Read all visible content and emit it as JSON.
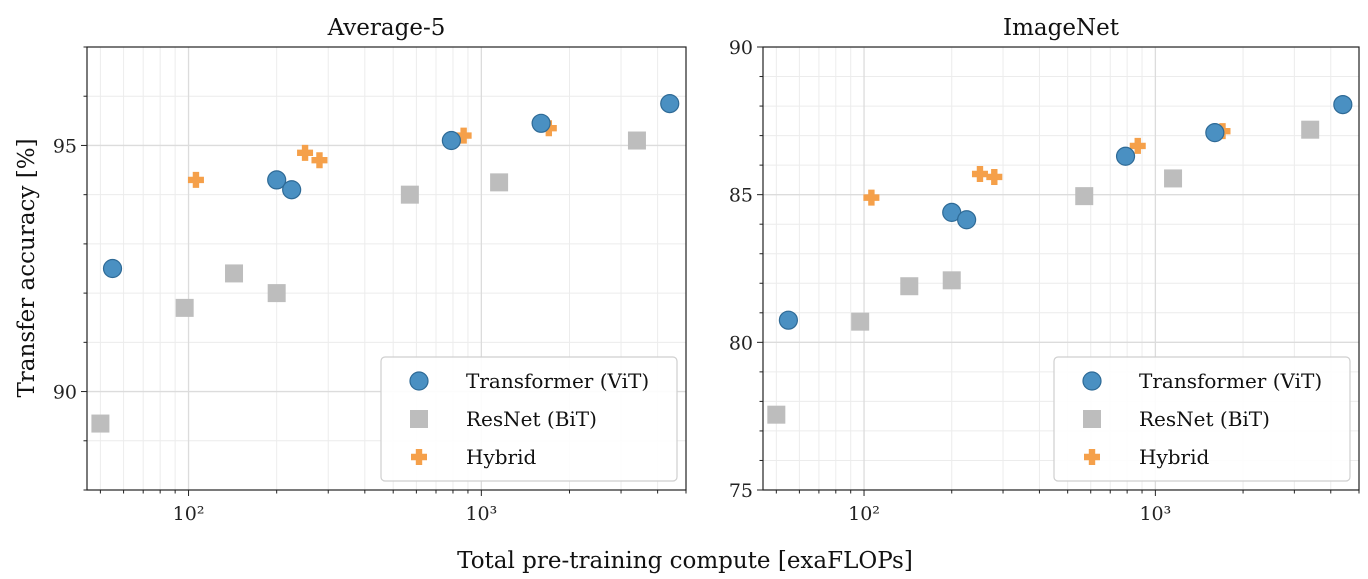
{
  "figure": {
    "ylabel": "Transfer accuracy [%]",
    "xlabel": "Total pre-training compute [exaFLOPs]"
  },
  "colors": {
    "vit": "#4a90c2",
    "vit_edge": "#2e6a96",
    "bit": "#bdbdbd",
    "hybrid": "#f5a04a",
    "grid": "#dcdcdc"
  },
  "legend": {
    "placement": "lower-right",
    "entries": [
      {
        "label": "Transformer (ViT)",
        "marker": "circle"
      },
      {
        "label": "ResNet (BiT)",
        "marker": "square"
      },
      {
        "label": "Hybrid",
        "marker": "plus"
      }
    ]
  },
  "chart_data": [
    {
      "type": "scatter",
      "title": "Average-5",
      "xscale": "log",
      "xlim": [
        45,
        5000
      ],
      "ylim": [
        88,
        97
      ],
      "xticks": [
        {
          "value": 100,
          "label": "10²"
        },
        {
          "value": 1000,
          "label": "10³"
        }
      ],
      "yticks": [
        {
          "value": 90,
          "label": "90"
        },
        {
          "value": 95,
          "label": "95"
        }
      ],
      "grid": true,
      "series": [
        {
          "name": "Transformer (ViT)",
          "points": [
            [
              55,
              92.5
            ],
            [
              200,
              94.3
            ],
            [
              225,
              94.1
            ],
            [
              790,
              95.1
            ],
            [
              1600,
              95.45
            ],
            [
              4400,
              95.85
            ]
          ]
        },
        {
          "name": "ResNet (BiT)",
          "points": [
            [
              50,
              89.35
            ],
            [
              97,
              91.7
            ],
            [
              143,
              92.4
            ],
            [
              200,
              92.0
            ],
            [
              570,
              94.0
            ],
            [
              1150,
              94.25
            ],
            [
              3400,
              95.1
            ]
          ]
        },
        {
          "name": "Hybrid",
          "points": [
            [
              106,
              94.3
            ],
            [
              250,
              94.85
            ],
            [
              280,
              94.7
            ],
            [
              870,
              95.2
            ],
            [
              1700,
              95.35
            ]
          ]
        }
      ]
    },
    {
      "type": "scatter",
      "title": "ImageNet",
      "xscale": "log",
      "xlim": [
        45,
        5000
      ],
      "ylim": [
        75,
        90
      ],
      "xticks": [
        {
          "value": 100,
          "label": "10²"
        },
        {
          "value": 1000,
          "label": "10³"
        }
      ],
      "yticks": [
        {
          "value": 75,
          "label": "75"
        },
        {
          "value": 80,
          "label": "80"
        },
        {
          "value": 85,
          "label": "85"
        },
        {
          "value": 90,
          "label": "90"
        }
      ],
      "grid": true,
      "series": [
        {
          "name": "Transformer (ViT)",
          "points": [
            [
              55,
              80.75
            ],
            [
              200,
              84.4
            ],
            [
              225,
              84.15
            ],
            [
              790,
              86.3
            ],
            [
              1600,
              87.1
            ],
            [
              4400,
              88.05
            ]
          ]
        },
        {
          "name": "ResNet (BiT)",
          "points": [
            [
              50,
              77.55
            ],
            [
              97,
              80.7
            ],
            [
              143,
              81.9
            ],
            [
              200,
              82.1
            ],
            [
              570,
              84.95
            ],
            [
              1150,
              85.55
            ],
            [
              3400,
              87.2
            ]
          ]
        },
        {
          "name": "Hybrid",
          "points": [
            [
              106,
              84.9
            ],
            [
              250,
              85.7
            ],
            [
              280,
              85.6
            ],
            [
              870,
              86.65
            ],
            [
              1700,
              87.15
            ]
          ]
        }
      ]
    }
  ]
}
